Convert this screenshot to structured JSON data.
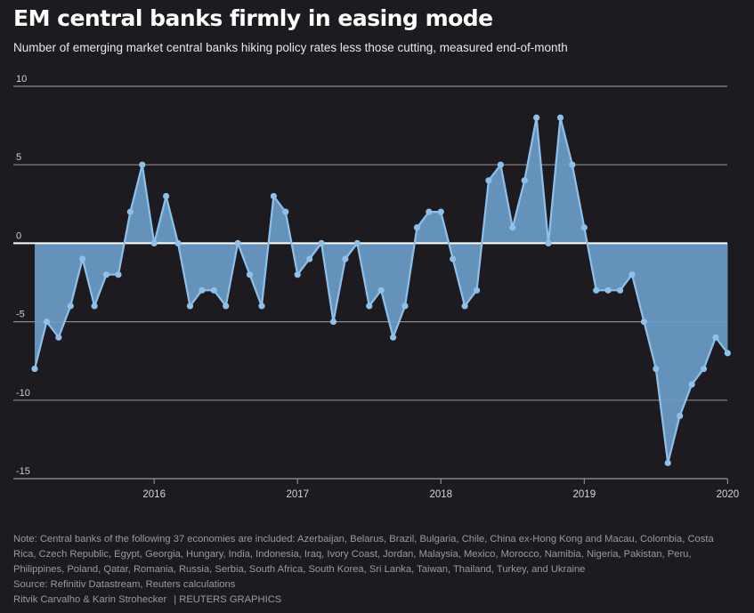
{
  "header": {
    "title": "EM central banks firmly in easing mode",
    "subtitle": "Number of emerging market central banks hiking policy rates less those cutting, measured end-of-month"
  },
  "footer": {
    "note": "Note: Central banks of the following 37 economies are included: Azerbaijan, Belarus, Brazil, Bulgaria, Chile, China ex-Hong Kong and Macau, Colombia, Costa Rica, Czech Republic, Egypt, Georgia, Hungary, India, Indonesia, Iraq, Ivory Coast, Jordan, Malaysia, Mexico, Morocco, Namibia, Nigeria, Pakistan, Peru, Philippines, Poland, Qatar, Romania, Russia, Serbia, South Africa, South Korea, Sri Lanka, Taiwan, Thailand, Turkey, and Ukraine",
    "source": "Source: Refinitiv Datastream, Reuters calculations",
    "authors": "Ritvik Carvalho & Karin Strohecker",
    "brand": "| REUTERS GRAPHICS"
  },
  "colors": {
    "background": "#1d1b1f",
    "area": "#6a9cc8",
    "line": "#8fc0ea",
    "zero_line": "#ffffff",
    "grid": "#8a8a8a"
  },
  "chart_data": {
    "type": "area",
    "title": "EM central banks firmly in easing mode",
    "subtitle": "Number of emerging market central banks hiking policy rates less those cutting, measured end-of-month",
    "xlabel": "",
    "ylabel": "",
    "y_ticks": [
      10,
      5,
      0,
      -5,
      -10,
      -15
    ],
    "y_tick_labels": [
      "10",
      "5",
      "0",
      "-5",
      "-10",
      "-15"
    ],
    "ylim": [
      -15,
      10
    ],
    "x_ticks": [
      "2016",
      "2017",
      "2018",
      "2019",
      "2020"
    ],
    "x_start": "2015-03",
    "x_end": "2020-01",
    "grid": true,
    "series": [
      {
        "x": [
          "2015-03",
          "2015-04",
          "2015-05",
          "2015-06",
          "2015-07",
          "2015-08",
          "2015-09",
          "2015-10",
          "2015-11",
          "2015-12",
          "2016-01",
          "2016-02",
          "2016-03",
          "2016-04",
          "2016-05",
          "2016-06",
          "2016-07",
          "2016-08",
          "2016-09",
          "2016-10",
          "2016-11",
          "2016-12",
          "2017-01",
          "2017-02",
          "2017-03",
          "2017-04",
          "2017-05",
          "2017-06",
          "2017-07",
          "2017-08",
          "2017-09",
          "2017-10",
          "2017-11",
          "2017-12",
          "2018-01",
          "2018-02",
          "2018-03",
          "2018-04",
          "2018-05",
          "2018-06",
          "2018-07",
          "2018-08",
          "2018-09",
          "2018-10",
          "2018-11",
          "2018-12",
          "2019-01",
          "2019-02",
          "2019-03",
          "2019-04",
          "2019-05",
          "2019-06",
          "2019-07",
          "2019-08",
          "2019-09",
          "2019-10",
          "2019-11",
          "2019-12",
          "2020-01"
        ],
        "values": [
          -8,
          -5,
          -6,
          -4,
          -1,
          -4,
          -2,
          -2,
          2,
          5,
          0,
          3,
          0,
          -4,
          -3,
          -3,
          -4,
          0,
          -2,
          -4,
          3,
          2,
          -2,
          -1,
          0,
          -5,
          -1,
          0,
          -4,
          -3,
          -6,
          -4,
          1,
          2,
          2,
          -1,
          -4,
          -3,
          4,
          5,
          1,
          4,
          8,
          0,
          8,
          5,
          1,
          -3,
          -3,
          -3,
          -2,
          -5,
          -8,
          -14,
          -11,
          -9,
          -8,
          -6,
          -7
        ]
      }
    ]
  }
}
